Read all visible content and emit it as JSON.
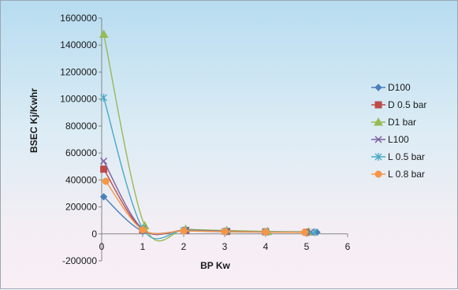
{
  "chart_data": {
    "type": "scatter",
    "title": "",
    "xlabel": "BP Kw",
    "ylabel": "BSEC Kj/Kwhr",
    "xlim": [
      0,
      6
    ],
    "ylim": [
      -200000,
      1600000
    ],
    "x_ticks": [
      "0",
      "1",
      "2",
      "3",
      "4",
      "5",
      "6"
    ],
    "y_ticks": [
      "-200000",
      "0",
      "200000",
      "400000",
      "600000",
      "800000",
      "1000000",
      "1200000",
      "1400000",
      "1600000"
    ],
    "grid": false,
    "smooth_lines": true,
    "legend_position": "right",
    "series": [
      {
        "name": "D100",
        "color": "#4a7ebb",
        "marker": "diamond",
        "x": [
          0.05,
          1.0,
          2.05,
          3.05,
          4.0,
          5.25
        ],
        "y": [
          275000,
          20000,
          22000,
          15000,
          13000,
          12000
        ]
      },
      {
        "name": "D 0.5 bar",
        "color": "#be4b48",
        "marker": "square",
        "x": [
          0.05,
          1.0,
          2.05,
          3.05,
          4.0,
          5.0
        ],
        "y": [
          480000,
          30000,
          25000,
          18000,
          15000,
          12000
        ]
      },
      {
        "name": "D1 bar",
        "color": "#98b954",
        "marker": "triangle",
        "x": [
          0.05,
          1.05,
          2.05,
          3.05,
          4.05,
          5.05
        ],
        "y": [
          1480000,
          60000,
          35000,
          25000,
          18000,
          15000
        ]
      },
      {
        "name": "L100",
        "color": "#7d60a0",
        "marker": "x",
        "x": [
          0.05,
          1.0,
          2.05,
          3.05,
          4.0,
          5.1
        ],
        "y": [
          540000,
          35000,
          28000,
          20000,
          15000,
          13000
        ]
      },
      {
        "name": "L 0.5 bar",
        "color": "#46aac5",
        "marker": "star",
        "x": [
          0.05,
          1.0,
          2.0,
          3.0,
          4.0,
          5.2
        ],
        "y": [
          1010000,
          40000,
          25000,
          18000,
          14000,
          12000
        ]
      },
      {
        "name": "L 0.8 bar",
        "color": "#f79646",
        "marker": "circle",
        "x": [
          0.1,
          1.0,
          2.0,
          3.0,
          4.0,
          4.95
        ],
        "y": [
          390000,
          30000,
          22000,
          17000,
          13000,
          11000
        ]
      }
    ]
  }
}
